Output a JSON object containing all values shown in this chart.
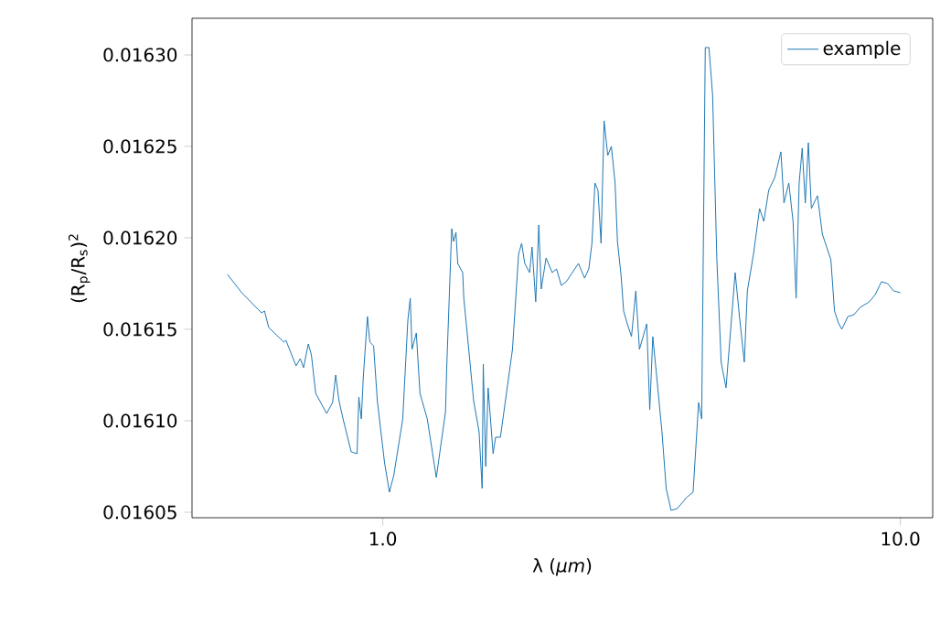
{
  "chart_data": {
    "type": "line",
    "xlabel": "λ (*μm*)",
    "ylabel": "(R$_{p}$/R$_{s}$)$^{2}$",
    "log": "x",
    "legend": "top right",
    "grid": false,
    "xlim": [
      0.428,
      11.55
    ],
    "ylim": [
      0.016047,
      0.01632
    ],
    "xticks": [
      {
        "value": 1,
        "label": "1.0"
      },
      {
        "value": 10,
        "label": "10.0"
      }
    ],
    "yticks": [
      {
        "value": 0.01605,
        "label": "0.01605"
      },
      {
        "value": 0.0161,
        "label": "0.01610"
      },
      {
        "value": 0.01615,
        "label": "0.01615"
      },
      {
        "value": 0.0162,
        "label": "0.01620"
      },
      {
        "value": 0.01625,
        "label": "0.01625"
      },
      {
        "value": 0.0163,
        "label": "0.01630"
      }
    ],
    "series": [
      {
        "name": "example",
        "color": "#1f77b4",
        "x": [
          0.501,
          0.534,
          0.583,
          0.591,
          0.602,
          0.644,
          0.65,
          0.68,
          0.693,
          0.703,
          0.718,
          0.728,
          0.742,
          0.779,
          0.8,
          0.811,
          0.823,
          0.838,
          0.869,
          0.892,
          0.899,
          0.909,
          0.917,
          0.934,
          0.944,
          0.96,
          0.976,
          1.008,
          1.03,
          1.05,
          1.093,
          1.118,
          1.13,
          1.139,
          1.161,
          1.18,
          1.219,
          1.269,
          1.322,
          1.329,
          1.359,
          1.37,
          1.385,
          1.396,
          1.427,
          1.434,
          1.466,
          1.498,
          1.535,
          1.556,
          1.564,
          1.581,
          1.598,
          1.634,
          1.652,
          1.688,
          1.781,
          1.83,
          1.855,
          1.881,
          1.922,
          1.943,
          1.975,
          2.002,
          2.024,
          2.068,
          2.125,
          2.166,
          2.213,
          2.262,
          2.388,
          2.454,
          2.501,
          2.536,
          2.57,
          2.605,
          2.641,
          2.677,
          2.721,
          2.765,
          2.811,
          2.841,
          2.888,
          2.92,
          2.968,
          3.024,
          3.083,
          3.133,
          3.236,
          3.28,
          3.325,
          3.399,
          3.463,
          3.529,
          3.607,
          3.707,
          3.861,
          3.978,
          4.076,
          4.132,
          4.199,
          4.268,
          4.338,
          4.421,
          4.506,
          4.605,
          4.68,
          4.796,
          4.888,
          4.995,
          5.063,
          5.203,
          5.346,
          5.448,
          5.568,
          5.721,
          5.878,
          5.959,
          6.089,
          6.205,
          6.29,
          6.376,
          6.463,
          6.552,
          6.642,
          6.732,
          6.918,
          7.069,
          7.204,
          7.343,
          7.462,
          7.606,
          7.709,
          7.92,
          8.138,
          8.362,
          8.71,
          8.946,
          9.194,
          9.447,
          9.707,
          10.0
        ],
        "values": [
          0.01618,
          0.01617,
          0.016159,
          0.01616,
          0.016151,
          0.016143,
          0.016144,
          0.01613,
          0.016134,
          0.016129,
          0.016142,
          0.016136,
          0.016115,
          0.016104,
          0.01611,
          0.016125,
          0.016111,
          0.016101,
          0.016083,
          0.016082,
          0.016113,
          0.016101,
          0.016124,
          0.016157,
          0.016143,
          0.016141,
          0.016111,
          0.016077,
          0.016061,
          0.01607,
          0.016101,
          0.016155,
          0.016167,
          0.016139,
          0.016148,
          0.016115,
          0.016101,
          0.016069,
          0.016105,
          0.016129,
          0.016205,
          0.016198,
          0.016203,
          0.016186,
          0.016181,
          0.016167,
          0.016139,
          0.016111,
          0.016094,
          0.016063,
          0.016131,
          0.016075,
          0.016118,
          0.016082,
          0.016091,
          0.016091,
          0.016139,
          0.016191,
          0.016197,
          0.016186,
          0.016181,
          0.016195,
          0.016165,
          0.016207,
          0.016172,
          0.016189,
          0.016181,
          0.016183,
          0.016174,
          0.016176,
          0.016186,
          0.016178,
          0.016183,
          0.016197,
          0.01623,
          0.016226,
          0.016197,
          0.016264,
          0.016245,
          0.01625,
          0.01623,
          0.016198,
          0.016179,
          0.01616,
          0.016153,
          0.016146,
          0.016171,
          0.016139,
          0.016153,
          0.016106,
          0.016146,
          0.016118,
          0.016094,
          0.016063,
          0.016051,
          0.016052,
          0.016058,
          0.016061,
          0.01611,
          0.016101,
          0.016304,
          0.016304,
          0.016278,
          0.016188,
          0.016132,
          0.016118,
          0.016143,
          0.016181,
          0.016157,
          0.016132,
          0.016171,
          0.016191,
          0.016216,
          0.016209,
          0.016226,
          0.016233,
          0.016247,
          0.016219,
          0.01623,
          0.016209,
          0.016167,
          0.01623,
          0.016249,
          0.016219,
          0.016252,
          0.016216,
          0.016223,
          0.016202,
          0.016195,
          0.016188,
          0.01616,
          0.016153,
          0.01615,
          0.016157,
          0.016158,
          0.016162,
          0.016165,
          0.016169,
          0.016176,
          0.016175,
          0.016171,
          0.01617
        ]
      }
    ]
  }
}
